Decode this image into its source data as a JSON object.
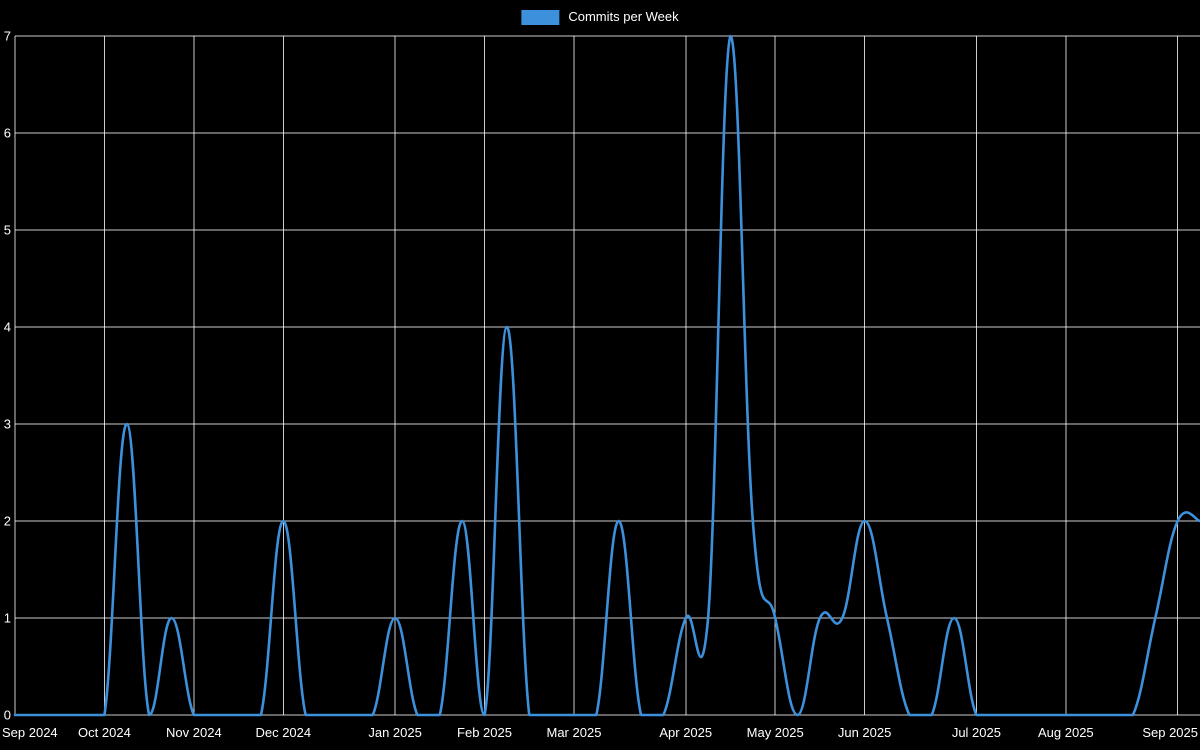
{
  "chart_data": {
    "type": "line",
    "title": "",
    "xlabel": "",
    "ylabel": "",
    "legend_position": "top-center",
    "grid": true,
    "background_color": "#000000",
    "grid_color": "rgba(255,255,255,0.8)",
    "text_color": "#ffffff",
    "ylim": [
      0,
      7
    ],
    "yticks": [
      0,
      1,
      2,
      3,
      4,
      5,
      6,
      7
    ],
    "x_unit": "week",
    "xticks": [
      {
        "week": 0,
        "label": "Sep 2024"
      },
      {
        "week": 4,
        "label": "Oct 2024"
      },
      {
        "week": 8,
        "label": "Nov 2024"
      },
      {
        "week": 12,
        "label": "Dec 2024"
      },
      {
        "week": 17,
        "label": "Jan 2025"
      },
      {
        "week": 21,
        "label": "Feb 2025"
      },
      {
        "week": 25,
        "label": "Mar 2025"
      },
      {
        "week": 30,
        "label": "Apr 2025"
      },
      {
        "week": 34,
        "label": "May 2025"
      },
      {
        "week": 38,
        "label": "Jun 2025"
      },
      {
        "week": 43,
        "label": "Jul 2025"
      },
      {
        "week": 47,
        "label": "Aug 2025"
      },
      {
        "week": 52,
        "label": "Sep 2025"
      }
    ],
    "series": [
      {
        "name": "Commits per Week",
        "color": "#3d90dc",
        "x": [
          0,
          1,
          2,
          3,
          4,
          5,
          6,
          7,
          8,
          9,
          10,
          11,
          12,
          13,
          14,
          15,
          16,
          17,
          18,
          19,
          20,
          21,
          22,
          23,
          24,
          25,
          26,
          27,
          28,
          29,
          30,
          31,
          32,
          33,
          34,
          35,
          36,
          37,
          38,
          39,
          40,
          41,
          42,
          43,
          44,
          45,
          46,
          47,
          48,
          49,
          50,
          51,
          52,
          53
        ],
        "values": [
          0,
          0,
          0,
          0,
          0,
          3,
          0,
          1,
          0,
          0,
          0,
          0,
          2,
          0,
          0,
          0,
          0,
          1,
          0,
          0,
          2,
          0,
          4,
          0,
          0,
          0,
          0,
          2,
          0,
          0,
          1,
          1,
          7,
          2,
          1,
          0,
          1,
          1,
          2,
          1,
          0,
          0,
          1,
          0,
          0,
          0,
          0,
          0,
          0,
          0,
          0,
          1,
          2,
          2
        ]
      }
    ]
  }
}
